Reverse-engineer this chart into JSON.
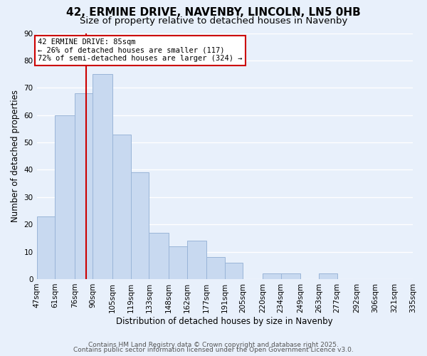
{
  "title": "42, ERMINE DRIVE, NAVENBY, LINCOLN, LN5 0HB",
  "subtitle": "Size of property relative to detached houses in Navenby",
  "xlabel": "Distribution of detached houses by size in Navenby",
  "ylabel": "Number of detached properties",
  "bar_edges": [
    47,
    61,
    76,
    90,
    105,
    119,
    133,
    148,
    162,
    177,
    191,
    205,
    220,
    234,
    249,
    263,
    277,
    292,
    306,
    321,
    335
  ],
  "bar_heights": [
    23,
    60,
    68,
    75,
    53,
    39,
    17,
    12,
    14,
    8,
    6,
    0,
    2,
    2,
    0,
    2,
    0,
    0,
    0,
    0
  ],
  "bar_color": "#c8d9f0",
  "bar_edgecolor": "#9ab5d8",
  "grid_color": "#ffffff",
  "bg_color": "#e8f0fb",
  "red_line_x": 85,
  "annotation_title": "42 ERMINE DRIVE: 85sqm",
  "annotation_line1": "← 26% of detached houses are smaller (117)",
  "annotation_line2": "72% of semi-detached houses are larger (324) →",
  "annotation_box_color": "#ffffff",
  "annotation_border_color": "#cc0000",
  "ylim": [
    0,
    90
  ],
  "yticks": [
    0,
    10,
    20,
    30,
    40,
    50,
    60,
    70,
    80,
    90
  ],
  "footer1": "Contains HM Land Registry data © Crown copyright and database right 2025.",
  "footer2": "Contains public sector information licensed under the Open Government Licence v3.0.",
  "title_fontsize": 11,
  "subtitle_fontsize": 9.5,
  "tick_label_fontsize": 7.5,
  "axis_label_fontsize": 8.5,
  "footer_fontsize": 6.5
}
